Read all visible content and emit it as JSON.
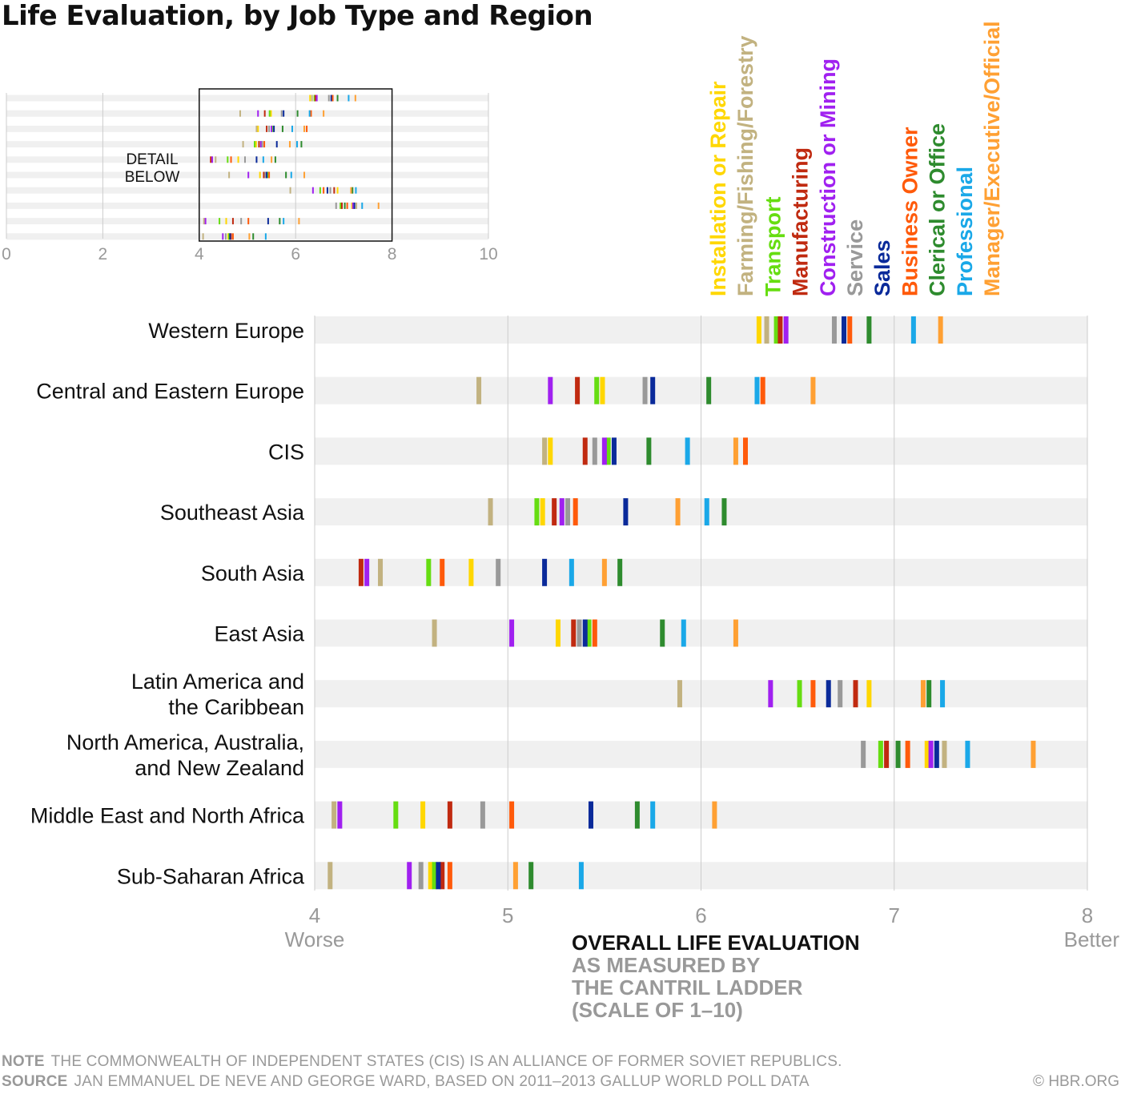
{
  "title": "Life Evaluation, by Job Type and Region",
  "colors": {
    "Installation or Repair": "#FFD700",
    "Farming/Fishing/Forestry": "#C2B280",
    "Transport": "#66DD11",
    "Manufacturing": "#C02A10",
    "Construction or Mining": "#A020F0",
    "Service": "#999999",
    "Sales": "#0A2A9A",
    "Business Owner": "#FF5A0A",
    "Clerical or Office": "#2E8B2E",
    "Professional": "#1AA8E8",
    "Manager/Executive/Official": "#FFA033",
    "band": "#F0F0F0",
    "grid": "#CCCCCC",
    "axis_text": "#999999"
  },
  "overview": {
    "ticks": [
      "0",
      "2",
      "4",
      "6",
      "8",
      "10"
    ],
    "detail_note": [
      "DETAIL",
      "BELOW"
    ]
  },
  "chart_data": {
    "type": "strip",
    "xlim": [
      4,
      8
    ],
    "ticks": [
      4,
      5,
      6,
      7,
      8
    ],
    "tick_labels": [
      "4",
      "5",
      "6",
      "7",
      "8"
    ],
    "x_low_label": "Worse",
    "x_high_label": "Better",
    "xlabel": "OVERALL LIFE EVALUATION",
    "xlabel_sub": [
      "AS MEASURED BY",
      "THE CANTRIL LADDER",
      "(SCALE OF 1–10)"
    ],
    "legend": [
      "Installation or Repair",
      "Farming/Fishing/Forestry",
      "Transport",
      "Manufacturing",
      "Construction or Mining",
      "Service",
      "Sales",
      "Business Owner",
      "Clerical or Office",
      "Professional",
      "Manager/Executive/Official"
    ],
    "regions": [
      {
        "name": "Western Europe",
        "lines": [
          "Western Europe"
        ],
        "values": [
          6.3,
          6.34,
          6.39,
          6.41,
          6.44,
          6.69,
          6.74,
          6.77,
          6.87,
          7.1,
          7.24
        ]
      },
      {
        "name": "Central and Eastern Europe",
        "lines": [
          "Central and Eastern Europe"
        ],
        "values": [
          5.49,
          4.85,
          5.46,
          5.36,
          5.22,
          5.71,
          5.75,
          6.32,
          6.04,
          6.29,
          6.58
        ]
      },
      {
        "name": "CIS",
        "lines": [
          "CIS"
        ],
        "values": [
          5.22,
          5.19,
          5.52,
          5.4,
          5.5,
          5.45,
          5.55,
          6.23,
          5.73,
          5.93,
          6.18
        ]
      },
      {
        "name": "Southeast Asia",
        "lines": [
          "Southeast Asia"
        ],
        "values": [
          5.18,
          4.91,
          5.15,
          5.24,
          5.28,
          5.31,
          5.61,
          5.35,
          6.12,
          6.03,
          5.88
        ]
      },
      {
        "name": "South Asia",
        "lines": [
          "South Asia"
        ],
        "values": [
          4.81,
          4.34,
          4.59,
          4.24,
          4.27,
          4.95,
          5.19,
          4.66,
          5.58,
          5.33,
          5.5
        ]
      },
      {
        "name": "East Asia",
        "lines": [
          "East Asia"
        ],
        "values": [
          5.26,
          4.62,
          5.42,
          5.34,
          5.02,
          5.37,
          5.4,
          5.45,
          5.8,
          5.91,
          6.18
        ]
      },
      {
        "name": "Latin America and the Caribbean",
        "lines": [
          "Latin America and",
          "the Caribbean"
        ],
        "values": [
          6.87,
          5.89,
          6.51,
          6.8,
          6.36,
          6.72,
          6.66,
          6.58,
          7.18,
          7.25,
          7.15
        ]
      },
      {
        "name": "North America, Australia, and New Zealand",
        "lines": [
          "North America, Australia,",
          "and New Zealand"
        ],
        "values": [
          7.17,
          7.26,
          6.93,
          6.96,
          7.19,
          6.84,
          7.22,
          7.07,
          7.02,
          7.38,
          7.72
        ]
      },
      {
        "name": "Middle East and North Africa",
        "lines": [
          "Middle East and North Africa"
        ],
        "values": [
          4.56,
          4.1,
          4.42,
          4.7,
          4.13,
          4.87,
          5.43,
          5.02,
          5.67,
          5.75,
          6.07
        ]
      },
      {
        "name": "Sub-Saharan Africa",
        "lines": [
          "Sub-Saharan Africa"
        ],
        "values": [
          4.6,
          4.08,
          4.62,
          4.66,
          4.49,
          4.55,
          4.64,
          4.7,
          5.12,
          5.38,
          5.04
        ]
      }
    ]
  },
  "footer": {
    "note_label": "NOTE",
    "note": "THE COMMONWEALTH OF INDEPENDENT STATES (CIS) IS AN ALLIANCE OF FORMER SOVIET REPUBLICS.",
    "source_label": "SOURCE",
    "source": "JAN EMMANUEL DE NEVE AND GEORGE WARD, BASED ON 2011–2013 GALLUP WORLD POLL DATA",
    "credit": "© HBR.ORG"
  }
}
